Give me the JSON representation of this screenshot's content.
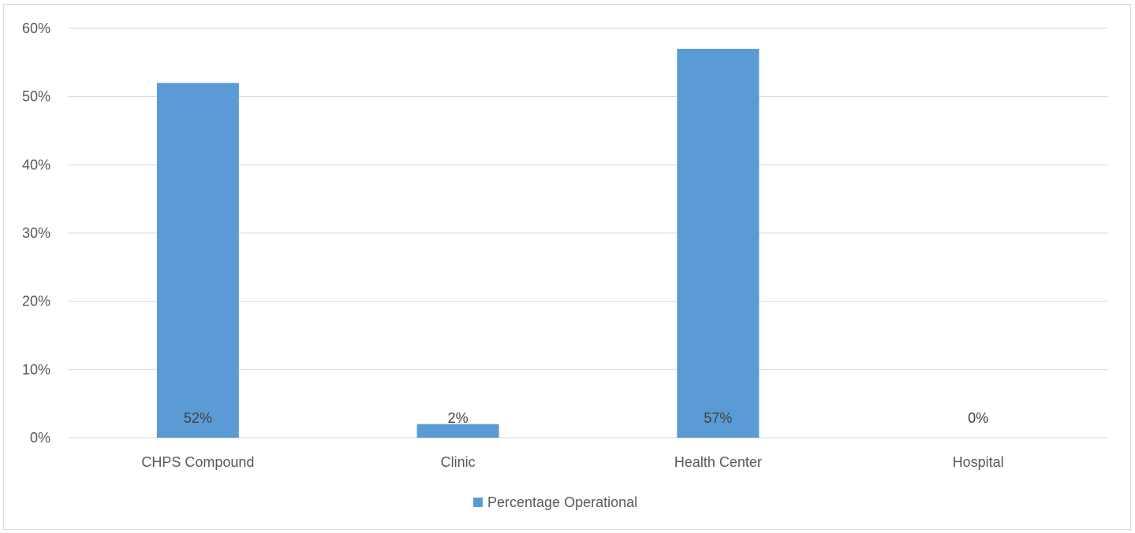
{
  "chart_data": {
    "type": "bar",
    "title": "",
    "xlabel": "",
    "ylabel": "",
    "categories": [
      "CHPS Compound",
      "Clinic",
      "Health Center",
      "Hospital"
    ],
    "series": [
      {
        "name": "Percentage Operational",
        "values": [
          52,
          2,
          57,
          0
        ],
        "data_labels": [
          "52%",
          "2%",
          "57%",
          "0%"
        ],
        "color": "#5b9bd5"
      }
    ],
    "ylim": [
      0,
      60
    ],
    "y_ticks": [
      0,
      10,
      20,
      30,
      40,
      50,
      60
    ],
    "y_tick_labels": [
      "0%",
      "10%",
      "20%",
      "30%",
      "40%",
      "50%",
      "60%"
    ],
    "grid": true,
    "legend_position": "bottom"
  },
  "colors": {
    "bar": "#5b9bd5",
    "gridline": "#d9d9d9",
    "axis_text": "#595959"
  }
}
